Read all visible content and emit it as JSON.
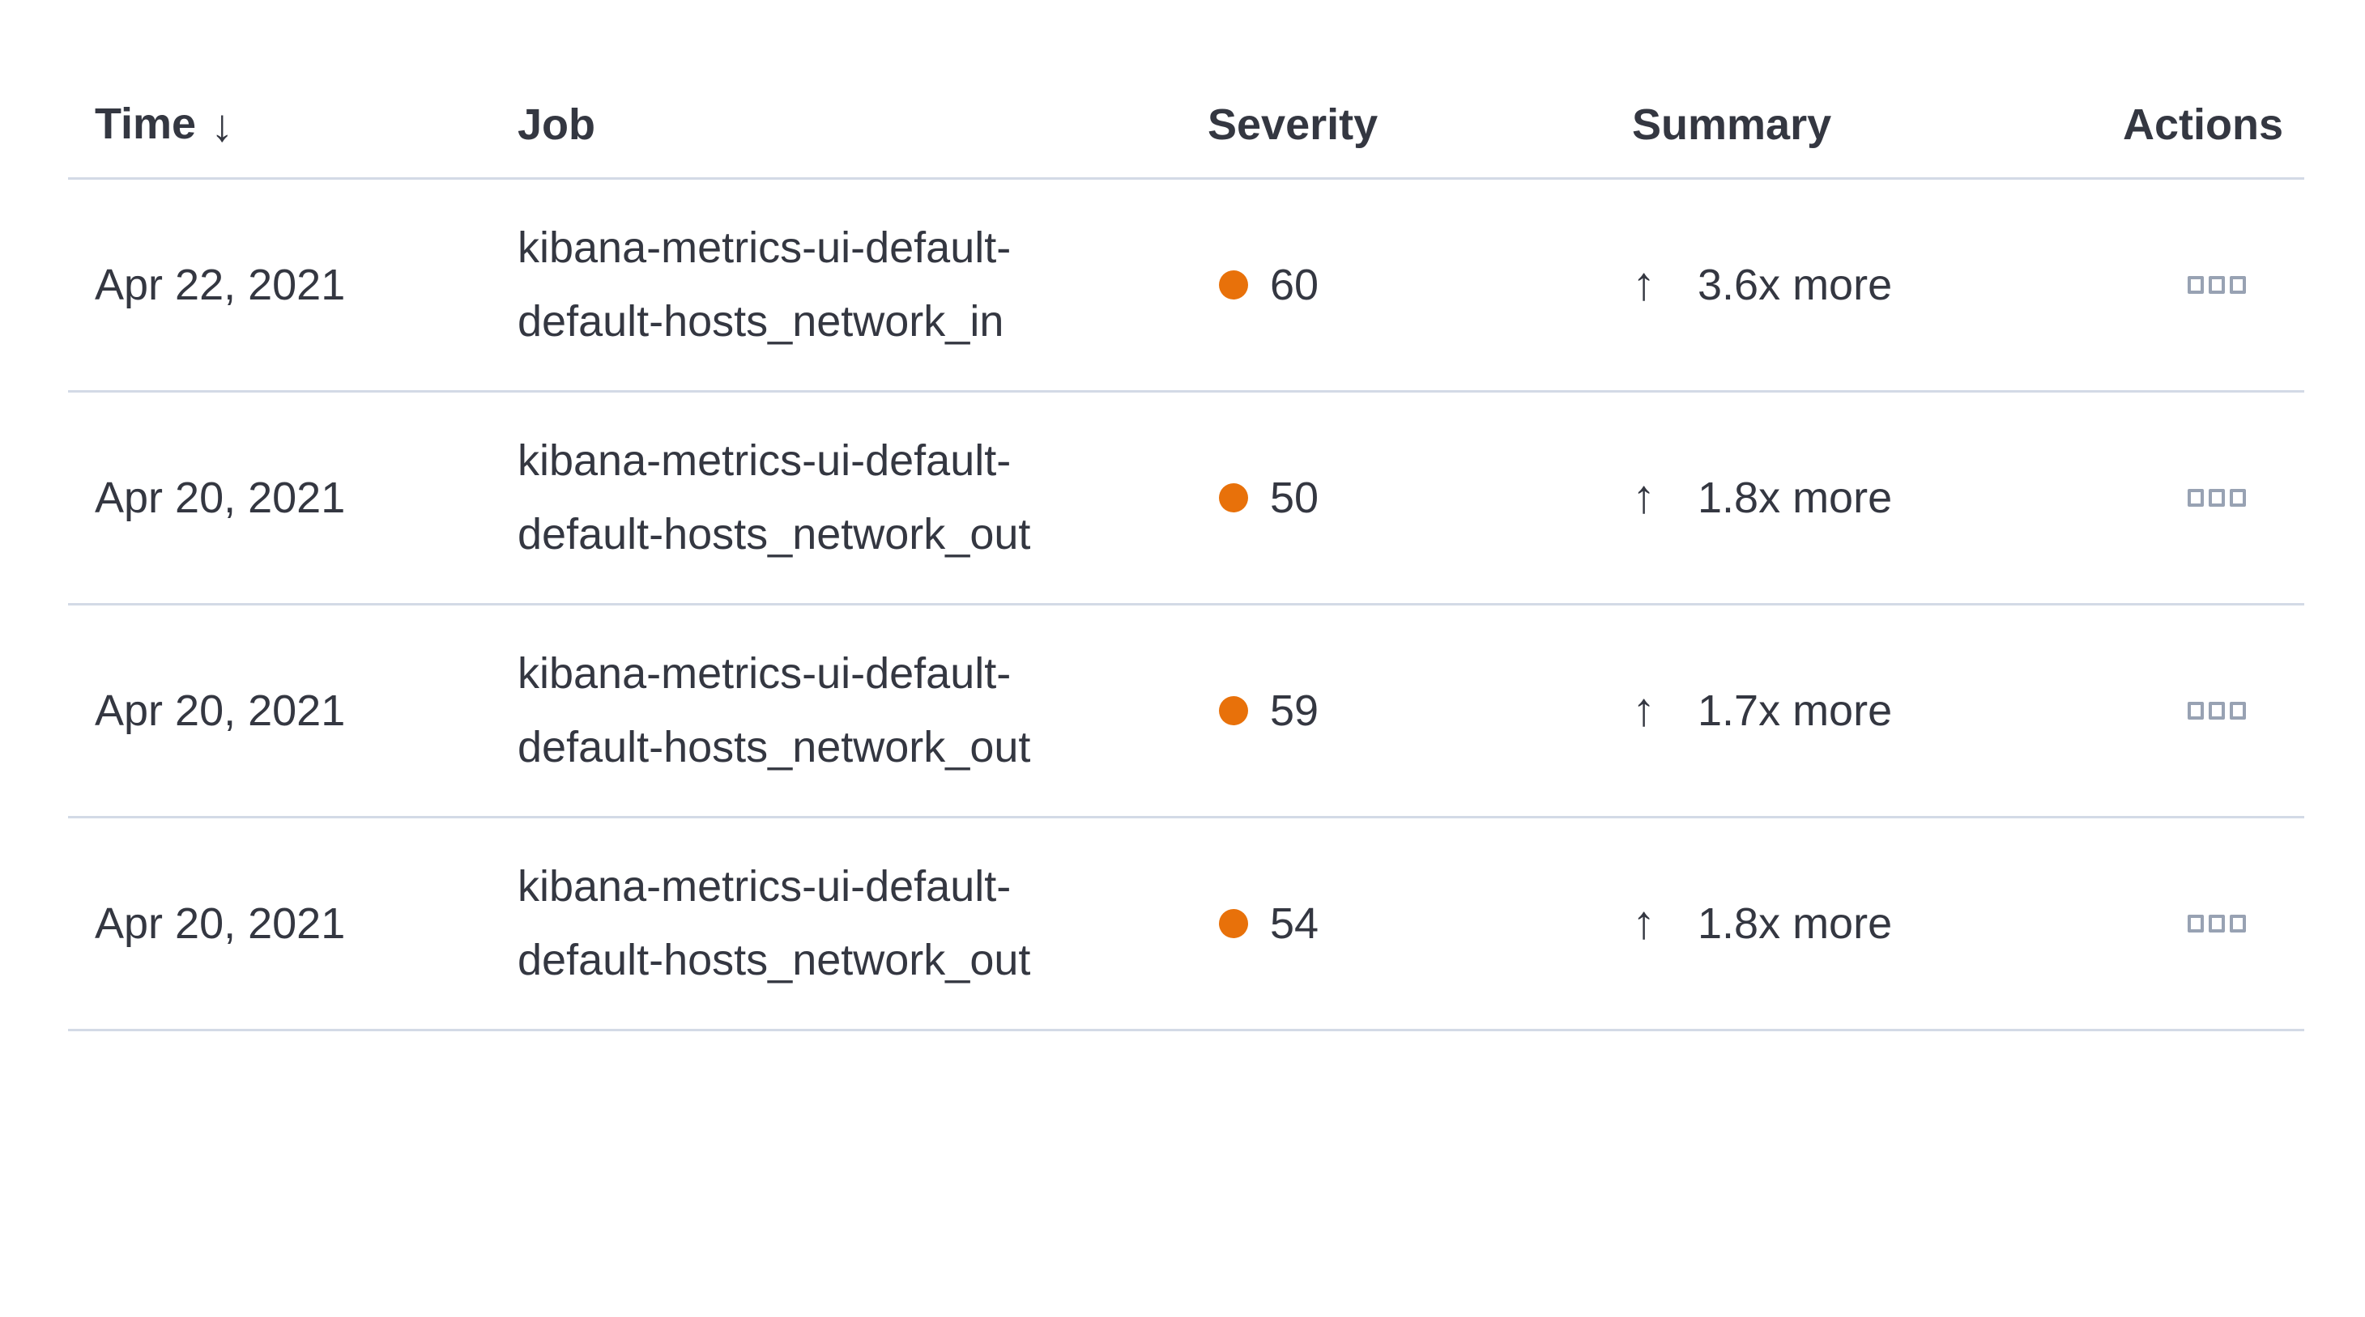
{
  "table": {
    "columns": [
      {
        "key": "time",
        "label": "Time",
        "sorted": "descending"
      },
      {
        "key": "job",
        "label": "Job"
      },
      {
        "key": "severity",
        "label": "Severity"
      },
      {
        "key": "summary",
        "label": "Summary"
      },
      {
        "key": "actions",
        "label": "Actions"
      }
    ],
    "sort_arrow": "↓",
    "summary_arrow": "↑",
    "rows": [
      {
        "time": "Apr 22, 2021",
        "job": "kibana-metrics-ui-default-default-hosts_network_in",
        "severity": "60",
        "summary": "3.6x more"
      },
      {
        "time": "Apr 20, 2021",
        "job": "kibana-metrics-ui-default-default-hosts_network_out",
        "severity": "50",
        "summary": "1.8x more"
      },
      {
        "time": "Apr 20, 2021",
        "job": "kibana-metrics-ui-default-default-hosts_network_out",
        "severity": "59",
        "summary": "1.7x more"
      },
      {
        "time": "Apr 20, 2021",
        "job": "kibana-metrics-ui-default-default-hosts_network_out",
        "severity": "54",
        "summary": "1.8x more"
      }
    ],
    "colors": {
      "text": "#343741",
      "border": "#d3dae6",
      "severity_dot": "#e8710a",
      "actions_icon": "#98a2b3"
    }
  }
}
